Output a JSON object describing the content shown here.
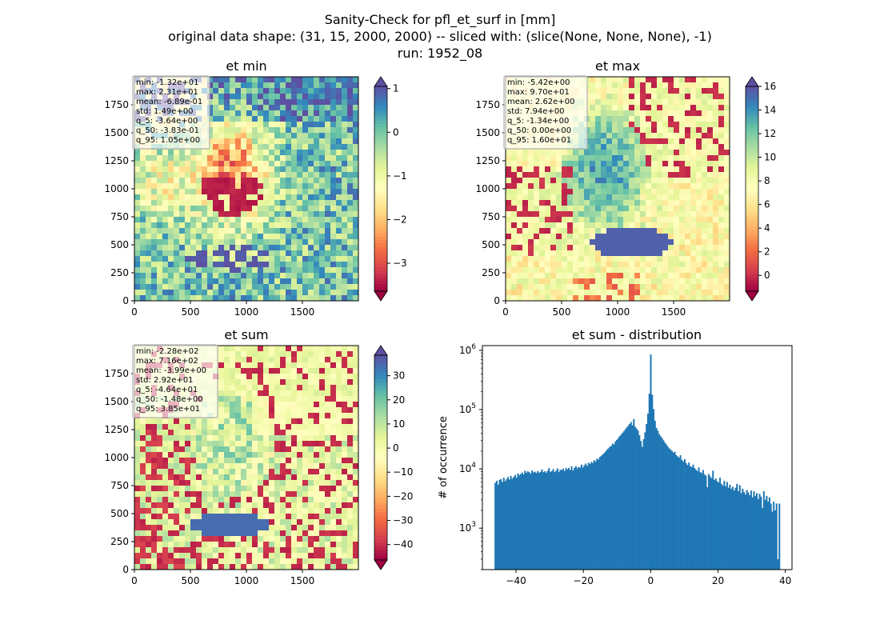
{
  "title_lines": [
    "Sanity-Check for pfl_et_surf in [mm]",
    "original data shape: (31, 15, 2000, 2000) -- sliced with: (slice(None, None, None), -1)",
    "run: 1952_08"
  ],
  "colors": {
    "spectral": [
      "#9e0142",
      "#d53e4f",
      "#f46d43",
      "#fdae61",
      "#fee08b",
      "#ffffbf",
      "#e6f598",
      "#abdda4",
      "#66c2a5",
      "#3288bd",
      "#5e4fa2"
    ],
    "hist_bar": "#1f77b4",
    "frame": "#000000"
  },
  "chart_data": [
    {
      "type": "heatmap",
      "title": "et min",
      "xlim": [
        0,
        2000
      ],
      "ylim": [
        0,
        2000
      ],
      "x_ticks": [
        0,
        500,
        1000,
        1500
      ],
      "y_ticks": [
        0,
        250,
        500,
        750,
        1000,
        1250,
        1500,
        1750
      ],
      "colorbar": {
        "range": [
          -3.64,
          1.05
        ],
        "ticks": [
          1,
          0,
          -1,
          -2,
          -3
        ],
        "tick_labels": [
          "1",
          "0",
          "−1",
          "−2",
          "−3"
        ],
        "extend": "both"
      },
      "stats": [
        "min: -1.32e+01",
        "max: 2.31e+01",
        "mean: -6.89e-01",
        "std: 1.49e+00",
        "q_5: -3.64e+00",
        "q_50: -3.83e-01",
        "q_95: 1.05e+00"
      ]
    },
    {
      "type": "heatmap",
      "title": "et max",
      "xlim": [
        0,
        2000
      ],
      "ylim": [
        0,
        2000
      ],
      "x_ticks": [
        0,
        500,
        1000,
        1500
      ],
      "y_ticks": [
        0,
        250,
        500,
        750,
        1000,
        1250,
        1500,
        1750
      ],
      "colorbar": {
        "range": [
          -1.34,
          16.0
        ],
        "ticks": [
          16,
          14,
          12,
          10,
          8,
          6,
          4,
          2,
          0
        ],
        "tick_labels": [
          "16",
          "14",
          "12",
          "10",
          "8",
          "6",
          "4",
          "2",
          "0"
        ],
        "extend": "both"
      },
      "stats": [
        "min: -5.42e+00",
        "max: 9.70e+01",
        "mean: 2.62e+00",
        "std: 7.94e+00",
        "q_5: -1.34e+00",
        "q_50: 0.00e+00",
        "q_95: 1.60e+01"
      ]
    },
    {
      "type": "heatmap",
      "title": "et sum",
      "xlim": [
        0,
        2000
      ],
      "ylim": [
        0,
        2000
      ],
      "x_ticks": [
        0,
        500,
        1000,
        1500
      ],
      "y_ticks": [
        0,
        250,
        500,
        750,
        1000,
        1250,
        1500,
        1750
      ],
      "colorbar": {
        "range": [
          -46.4,
          38.5
        ],
        "ticks": [
          30,
          20,
          10,
          0,
          -10,
          -20,
          -30,
          -40
        ],
        "tick_labels": [
          "30",
          "20",
          "10",
          "0",
          "−10",
          "−20",
          "−30",
          "−40"
        ],
        "extend": "both"
      },
      "stats": [
        "min: -2.28e+02",
        "max: 7.16e+02",
        "mean: -3.99e+00",
        "std: 2.92e+01",
        "q_5: -4.64e+01",
        "q_50: -1.48e+00",
        "q_95: 3.85e+01"
      ]
    },
    {
      "type": "bar",
      "title": "et sum - distribution",
      "ylabel": "# of occurrence",
      "xlabel": "",
      "xlim": [
        -50,
        42
      ],
      "ylim": [
        200,
        1200000
      ],
      "log_y": true,
      "x_ticks": [
        -40,
        -20,
        0,
        20,
        40
      ],
      "x_tick_labels": [
        "−40",
        "−20",
        "0",
        "20",
        "40"
      ],
      "y_ticks": [
        1000,
        10000,
        100000,
        1000000
      ],
      "y_tick_labels": [
        [
          "10",
          "3"
        ],
        [
          "10",
          "4"
        ],
        [
          "10",
          "5"
        ],
        [
          "10",
          "6"
        ]
      ],
      "bin_width": 0.42,
      "bins_x": [
        -46.4,
        -45.98,
        -45.56,
        -45.14,
        -44.72,
        -44.3,
        -43.88,
        -43.46,
        -43.04,
        -42.62,
        -42.2,
        -41.78,
        -41.36,
        -40.94,
        -40.52,
        -40.1,
        -39.68,
        -39.26,
        -38.84,
        -38.42,
        -38,
        -37.58,
        -37.16,
        -36.74,
        -36.32,
        -35.9,
        -35.48,
        -35.06,
        -34.64,
        -34.22,
        -33.8,
        -33.38,
        -32.96,
        -32.54,
        -32.12,
        -31.7,
        -31.28,
        -30.86,
        -30.44,
        -30.02,
        -29.6,
        -29.18,
        -28.76,
        -28.34,
        -27.92,
        -27.5,
        -27.08,
        -26.66,
        -26.24,
        -25.82,
        -25.4,
        -24.98,
        -24.56,
        -24.14,
        -23.72,
        -23.3,
        -22.88,
        -22.46,
        -22.04,
        -21.62,
        -21.2,
        -20.78,
        -20.36,
        -19.94,
        -19.52,
        -19.1,
        -18.68,
        -18.26,
        -17.84,
        -17.42,
        -17,
        -16.58,
        -16.16,
        -15.74,
        -15.32,
        -14.9,
        -14.48,
        -14.06,
        -13.64,
        -13.22,
        -12.8,
        -12.38,
        -11.96,
        -11.54,
        -11.12,
        -10.7,
        -10.28,
        -9.86,
        -9.44,
        -9.02,
        -8.6,
        -8.18,
        -7.76,
        -7.34,
        -6.92,
        -6.5,
        -6.08,
        -5.66,
        -5.24,
        -4.82,
        -4.4,
        -3.98,
        -3.56,
        -3.14,
        -2.72,
        -2.3,
        -1.88,
        -1.46,
        -1.04,
        -0.62,
        -0.2,
        0.22,
        0.64,
        1.06,
        1.48,
        1.9,
        2.32,
        2.74,
        3.16,
        3.58,
        4,
        4.42,
        4.84,
        5.26,
        5.68,
        6.1,
        6.52,
        6.94,
        7.36,
        7.78,
        8.2,
        8.62,
        9.04,
        9.46,
        9.88,
        10.3,
        10.72,
        11.14,
        11.56,
        11.98,
        12.4,
        12.82,
        13.24,
        13.66,
        14.08,
        14.5,
        14.92,
        15.34,
        15.76,
        16.18,
        16.6,
        17.02,
        17.44,
        17.86,
        18.28,
        18.7,
        19.12,
        19.54,
        19.96,
        20.38,
        20.8,
        21.22,
        21.64,
        22.06,
        22.48,
        22.9,
        23.32,
        23.74,
        24.16,
        24.58,
        25,
        25.42,
        25.84,
        26.26,
        26.68,
        27.1,
        27.52,
        27.94,
        28.36,
        28.78,
        29.2,
        29.62,
        30.04,
        30.46,
        30.88,
        31.3,
        31.72,
        32.14,
        32.56,
        32.98,
        33.4,
        33.82,
        34.24,
        34.66,
        35.08,
        35.5,
        35.92,
        36.34,
        36.76,
        37.18,
        37.6,
        38.02
      ],
      "counts": [
        5800,
        6300,
        5400,
        6500,
        6700,
        6000,
        7100,
        6200,
        6700,
        7300,
        6600,
        7600,
        6800,
        7300,
        7900,
        7100,
        8400,
        7800,
        8200,
        8700,
        8100,
        9300,
        8600,
        9100,
        8800,
        8300,
        9400,
        8700,
        9000,
        8500,
        9200,
        8600,
        8900,
        9800,
        8800,
        9100,
        8600,
        9300,
        10300,
        8900,
        9200,
        9900,
        8800,
        9300,
        10200,
        8900,
        9700,
        9500,
        10100,
        9200,
        10300,
        9800,
        10400,
        9600,
        11000,
        9400,
        10400,
        11100,
        10200,
        10800,
        10500,
        11800,
        10600,
        11500,
        12300,
        11200,
        12700,
        12100,
        13100,
        12600,
        14000,
        13300,
        14900,
        14400,
        15900,
        16600,
        17500,
        18400,
        19600,
        21000,
        22200,
        23600,
        24300,
        26700,
        25800,
        29100,
        30900,
        33100,
        35700,
        37700,
        40500,
        43200,
        46600,
        49800,
        53300,
        57300,
        61700,
        54400,
        69100,
        51400,
        47800,
        44100,
        36800,
        29500,
        23600,
        31800,
        41400,
        57200,
        85400,
        185000,
        850000,
        178000,
        102000,
        64800,
        49200,
        44100,
        38600,
        35400,
        33200,
        30400,
        27800,
        25800,
        23900,
        22300,
        21200,
        20100,
        18800,
        19400,
        17100,
        16200,
        15500,
        17000,
        14200,
        13300,
        14600,
        12500,
        11600,
        12800,
        11100,
        10700,
        11800,
        10300,
        9700,
        9200,
        10600,
        8800,
        8500,
        9600,
        8100,
        7700,
        4900,
        8200,
        7500,
        7000,
        9300,
        6500,
        6900,
        6200,
        5900,
        7100,
        5600,
        5200,
        6300,
        5100,
        6000,
        4800,
        5400,
        4600,
        5000,
        4300,
        4800,
        5600,
        4200,
        5300,
        3900,
        4600,
        4100,
        3700,
        4400,
        4000,
        3600,
        4300,
        3300,
        4200,
        3500,
        3900,
        3100,
        3800,
        3400,
        2200,
        4200,
        3000,
        3500,
        2800,
        3300,
        2600,
        1900,
        2800,
        2000,
        2600,
        300,
        2600
      ]
    }
  ]
}
